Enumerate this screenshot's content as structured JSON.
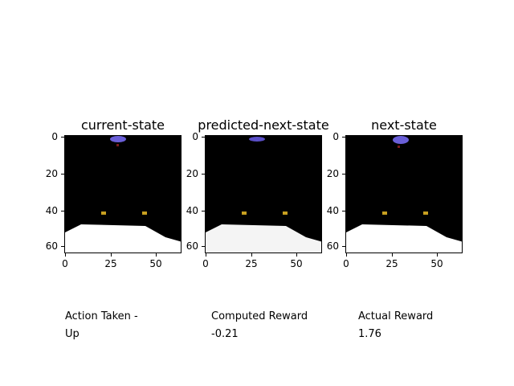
{
  "panels": [
    {
      "title": "current-state",
      "y_ticks": [
        "0",
        "20",
        "40",
        "60"
      ],
      "x_ticks": [
        "0",
        "25",
        "50"
      ]
    },
    {
      "title": "predicted-next-state",
      "y_ticks": [
        "0",
        "20",
        "40",
        "60"
      ],
      "x_ticks": [
        "0",
        "25",
        "50"
      ]
    },
    {
      "title": "next-state",
      "y_ticks": [
        "0",
        "20",
        "40",
        "60"
      ],
      "x_ticks": [
        "0",
        "25",
        "50"
      ]
    }
  ],
  "info": {
    "action_label": "Action Taken -",
    "action_value": "Up",
    "computed_label": "Computed Reward",
    "computed_value": "-0.21",
    "actual_label": "Actual Reward",
    "actual_value": "1.76"
  }
}
